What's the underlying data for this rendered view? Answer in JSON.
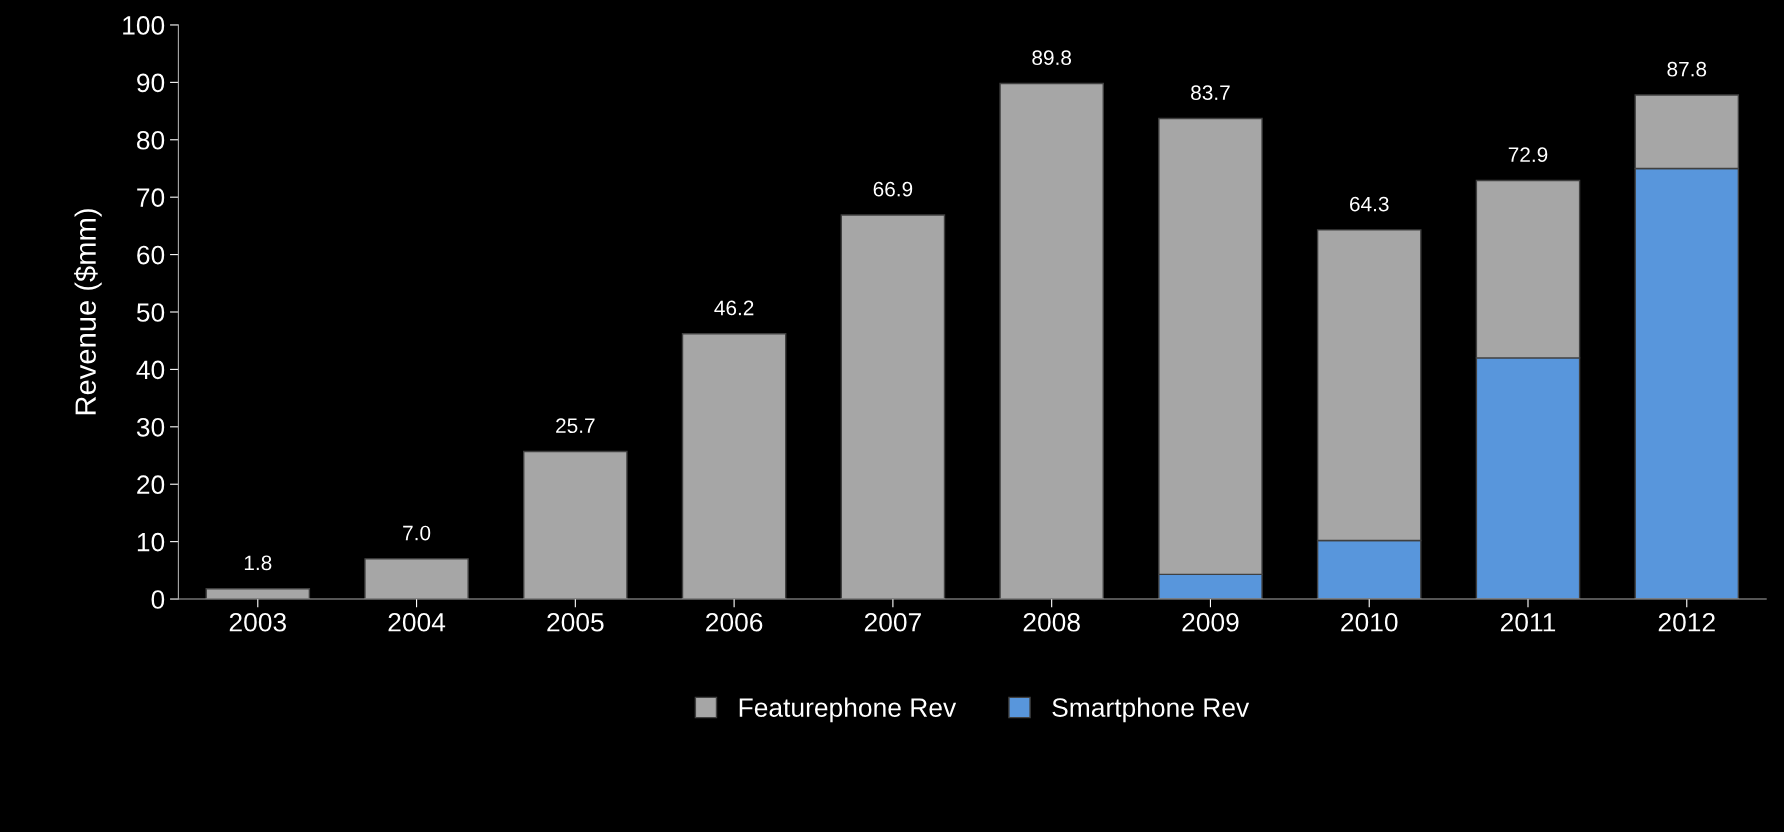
{
  "chart_data": {
    "type": "bar",
    "stacked": true,
    "ylabel": "Revenue ($mm)",
    "categories": [
      "2003",
      "2004",
      "2005",
      "2006",
      "2007",
      "2008",
      "2009",
      "2010",
      "2011",
      "2012"
    ],
    "series": [
      {
        "name": "Smartphone Rev",
        "color": "#5896dc",
        "values": [
          0,
          0,
          0,
          0,
          0,
          0,
          4.3,
          10.2,
          42.0,
          75.0
        ]
      },
      {
        "name": "Featurephone Rev",
        "color": "#a6a6a6",
        "values": [
          1.8,
          7.0,
          25.7,
          46.2,
          66.9,
          89.8,
          79.4,
          54.1,
          30.9,
          12.8
        ]
      }
    ],
    "totals": [
      "1.8",
      "7.0",
      "25.7",
      "46.2",
      "66.9",
      "89.8",
      "83.7",
      "64.3",
      "72.9",
      "87.8"
    ],
    "ylim": [
      0,
      100
    ],
    "yticks": [
      0,
      10,
      20,
      30,
      40,
      50,
      60,
      70,
      80,
      90,
      100
    ],
    "grid": false,
    "legend": "bottom"
  }
}
